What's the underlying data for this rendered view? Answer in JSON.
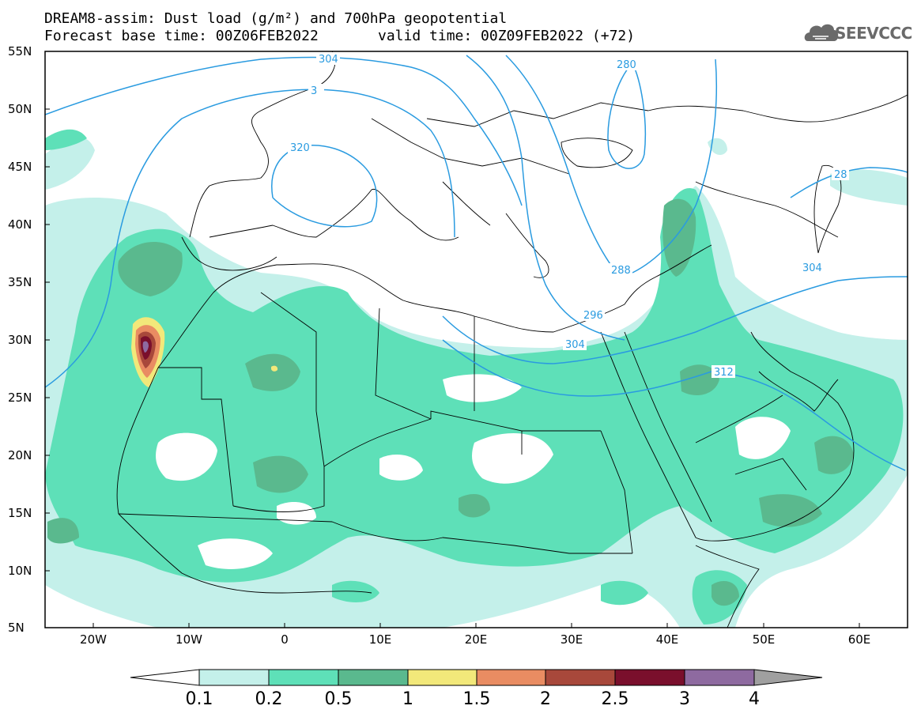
{
  "header": {
    "title_line1": "DREAM8-assim: Dust load (g/m²) and 700hPa geopotential",
    "title_line2_left": "Forecast base time: 00Z06FEB2022",
    "title_line2_right": "valid time: 00Z09FEB2022 (+72)",
    "logo_text": "SEEVCCC"
  },
  "map": {
    "lon_range": [
      -25,
      65
    ],
    "lat_range": [
      5,
      55
    ],
    "y_ticks": [
      "55N",
      "50N",
      "45N",
      "40N",
      "35N",
      "30N",
      "25N",
      "20N",
      "15N",
      "10N",
      "5N"
    ],
    "x_ticks": [
      "20W",
      "10W",
      "0",
      "10E",
      "20E",
      "30E",
      "40E",
      "50E",
      "60E"
    ],
    "contour_labels": [
      "304",
      "3",
      "320",
      "280",
      "288",
      "296",
      "304",
      "304",
      "312",
      "28"
    ]
  },
  "colorbar": {
    "labels": [
      "0.1",
      "0.2",
      "0.5",
      "1",
      "1.5",
      "2",
      "2.5",
      "3",
      "4"
    ],
    "colors": [
      "#c4f0ea",
      "#5ee0b8",
      "#5ab98e",
      "#f2e87a",
      "#e98c62",
      "#a8483b",
      "#7a0f2c",
      "#8e6aa0",
      "#a0a0a0"
    ]
  }
}
